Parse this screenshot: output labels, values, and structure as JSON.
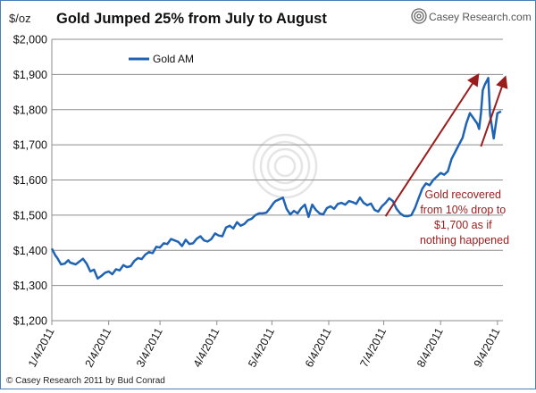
{
  "chart_data": {
    "type": "line",
    "title": "Gold Jumped 25% from July to August",
    "unit_label": "$/oz",
    "brand": "Casey Research.com",
    "credit": "© Casey Research 2011 by Bud Conrad",
    "legend": "Gold AM",
    "legend_position": "top-left",
    "series_color": "#1f63b4",
    "arrow_color": "#9b1c1c",
    "annotation": [
      "Gold recovered",
      "from 10% drop to",
      "$1,700 as if",
      "nothing happened"
    ],
    "ylim": [
      1200,
      2000
    ],
    "yticks": [
      1200,
      1300,
      1400,
      1500,
      1600,
      1700,
      1800,
      1900,
      2000
    ],
    "ytick_labels": [
      "$1,200",
      "$1,300",
      "$1,400",
      "$1,500",
      "$1,600",
      "$1,700",
      "$1,800",
      "$1,900",
      "$2,000"
    ],
    "xlim": [
      0,
      246
    ],
    "xtick_days": [
      0,
      31,
      59,
      90,
      120,
      151,
      181,
      212,
      243
    ],
    "xtick_labels": [
      "1/4/2011",
      "2/4/2011",
      "3/4/2011",
      "4/4/2011",
      "5/4/2011",
      "6/4/2011",
      "7/4/2011",
      "8/4/2011",
      "9/4/2011"
    ],
    "grid": true,
    "series": [
      {
        "name": "Gold AM",
        "x": [
          0,
          2,
          3,
          5,
          7,
          9,
          10,
          13,
          15,
          17,
          19,
          21,
          23,
          25,
          27,
          29,
          31,
          33,
          35,
          37,
          39,
          41,
          43,
          45,
          47,
          49,
          51,
          53,
          55,
          57,
          59,
          61,
          63,
          65,
          67,
          69,
          71,
          73,
          75,
          77,
          79,
          81,
          83,
          85,
          87,
          89,
          91,
          93,
          95,
          97,
          99,
          101,
          103,
          105,
          107,
          109,
          111,
          113,
          115,
          117,
          119,
          121,
          122,
          124,
          126,
          128,
          130,
          132,
          134,
          136,
          138,
          140,
          142,
          144,
          146,
          148,
          150,
          152,
          154,
          156,
          158,
          160,
          162,
          164,
          166,
          168,
          170,
          172,
          174,
          176,
          178,
          180,
          182,
          184,
          186,
          188,
          190,
          192,
          194,
          196,
          198,
          200,
          202,
          204,
          206,
          208,
          210,
          212,
          214,
          216,
          218,
          220,
          222,
          224,
          226,
          228,
          230,
          232,
          233,
          234,
          235,
          236,
          237,
          238,
          239,
          241,
          243,
          245
        ],
        "values": [
          1405,
          1385,
          1378,
          1360,
          1362,
          1372,
          1365,
          1360,
          1368,
          1376,
          1362,
          1340,
          1345,
          1320,
          1327,
          1336,
          1340,
          1332,
          1346,
          1343,
          1358,
          1352,
          1355,
          1370,
          1378,
          1375,
          1388,
          1395,
          1392,
          1410,
          1408,
          1420,
          1418,
          1432,
          1428,
          1424,
          1412,
          1430,
          1418,
          1420,
          1433,
          1440,
          1428,
          1425,
          1432,
          1448,
          1442,
          1440,
          1465,
          1470,
          1462,
          1480,
          1470,
          1475,
          1486,
          1490,
          1500,
          1505,
          1505,
          1507,
          1520,
          1535,
          1540,
          1545,
          1550,
          1518,
          1502,
          1512,
          1505,
          1520,
          1530,
          1495,
          1530,
          1515,
          1505,
          1502,
          1520,
          1525,
          1518,
          1532,
          1535,
          1530,
          1540,
          1537,
          1532,
          1550,
          1535,
          1528,
          1533,
          1515,
          1510,
          1525,
          1535,
          1548,
          1540,
          1518,
          1505,
          1498,
          1497,
          1500,
          1520,
          1548,
          1575,
          1590,
          1585,
          1600,
          1610,
          1620,
          1615,
          1625,
          1660,
          1680,
          1700,
          1720,
          1760,
          1790,
          1775,
          1760,
          1745,
          1790,
          1855,
          1870,
          1880,
          1890,
          1785,
          1718,
          1790,
          1795
        ]
      }
    ]
  }
}
